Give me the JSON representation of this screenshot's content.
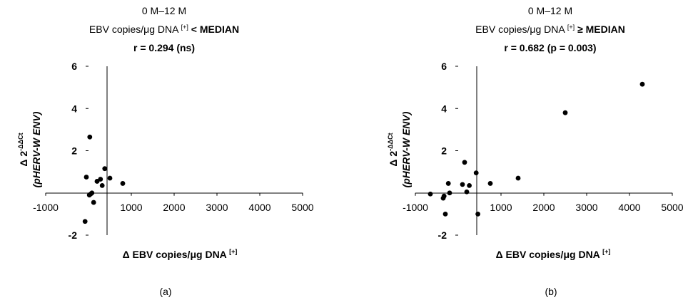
{
  "chart_data": [
    {
      "type": "scatter",
      "panel_label": "(a)",
      "title_line1": "0 M–12 M",
      "title_line2_pre": "EBV copies/μg DNA ",
      "title_line2_sup": "[+]",
      "title_line2_post": " < MEDIAN",
      "title_line3": "r = 0.294 (ns)",
      "xlabel_pre": "Δ EBV copies/μg DNA ",
      "xlabel_sup": "[+]",
      "ylabel_line1": "Δ 2",
      "ylabel_sup": "-ΔΔCt",
      "ylabel_line2": "(pHERV-W ENV)",
      "xlim": [
        -1000,
        5000
      ],
      "ylim": [
        -2,
        6
      ],
      "x_ticks": [
        "-1000",
        "1000",
        "2000",
        "3000",
        "4000",
        "5000"
      ],
      "x_tick_values": [
        -1000,
        1000,
        2000,
        3000,
        4000,
        5000
      ],
      "y_ticks": [
        "-2",
        "2",
        "4",
        "6"
      ],
      "y_tick_values": [
        -2,
        2,
        4,
        6
      ],
      "points": [
        {
          "x": 30,
          "y": 2.65
        },
        {
          "x": -50,
          "y": 0.75
        },
        {
          "x": 50,
          "y": -0.05
        },
        {
          "x": 80,
          "y": 0.0
        },
        {
          "x": 20,
          "y": -0.1
        },
        {
          "x": 120,
          "y": -0.45
        },
        {
          "x": 200,
          "y": 0.55
        },
        {
          "x": 280,
          "y": 0.65
        },
        {
          "x": 320,
          "y": 0.35
        },
        {
          "x": 380,
          "y": 1.15
        },
        {
          "x": 500,
          "y": 0.7
        },
        {
          "x": 800,
          "y": 0.45
        },
        {
          "x": -80,
          "y": -1.35
        }
      ]
    },
    {
      "type": "scatter",
      "panel_label": "(b)",
      "title_line1": "0 M–12 M",
      "title_line2_pre": "EBV copies/μg DNA ",
      "title_line2_sup": "[+]",
      "title_line2_post": " ≥ MEDIAN",
      "title_line3": "r = 0.682 (p = 0.003)",
      "xlabel_pre": "Δ EBV copies/μg DNA ",
      "xlabel_sup": "[+]",
      "ylabel_line1": "Δ 2",
      "ylabel_sup": "-ΔΔCt",
      "ylabel_line2": "(pHERV-W ENV)",
      "xlim": [
        -1000,
        5000
      ],
      "ylim": [
        -2,
        6
      ],
      "x_ticks": [
        "-1000",
        "1000",
        "2000",
        "3000",
        "4000",
        "5000"
      ],
      "x_tick_values": [
        -1000,
        1000,
        2000,
        3000,
        4000,
        5000
      ],
      "y_ticks": [
        "-2",
        "2",
        "4",
        "6"
      ],
      "y_tick_values": [
        -2,
        2,
        4,
        6
      ],
      "points": [
        {
          "x": -650,
          "y": -0.05
        },
        {
          "x": -350,
          "y": -0.25
        },
        {
          "x": -330,
          "y": -0.15
        },
        {
          "x": -230,
          "y": 0.45
        },
        {
          "x": -200,
          "y": 0.0
        },
        {
          "x": -300,
          "y": -1.0
        },
        {
          "x": 100,
          "y": 0.4
        },
        {
          "x": 150,
          "y": 1.45
        },
        {
          "x": 200,
          "y": 0.05
        },
        {
          "x": 260,
          "y": 0.35
        },
        {
          "x": 420,
          "y": 0.95
        },
        {
          "x": 460,
          "y": -1.0
        },
        {
          "x": 750,
          "y": 0.45
        },
        {
          "x": 1400,
          "y": 0.7
        },
        {
          "x": 2500,
          "y": 3.8
        },
        {
          "x": 4300,
          "y": 5.15
        }
      ]
    }
  ]
}
